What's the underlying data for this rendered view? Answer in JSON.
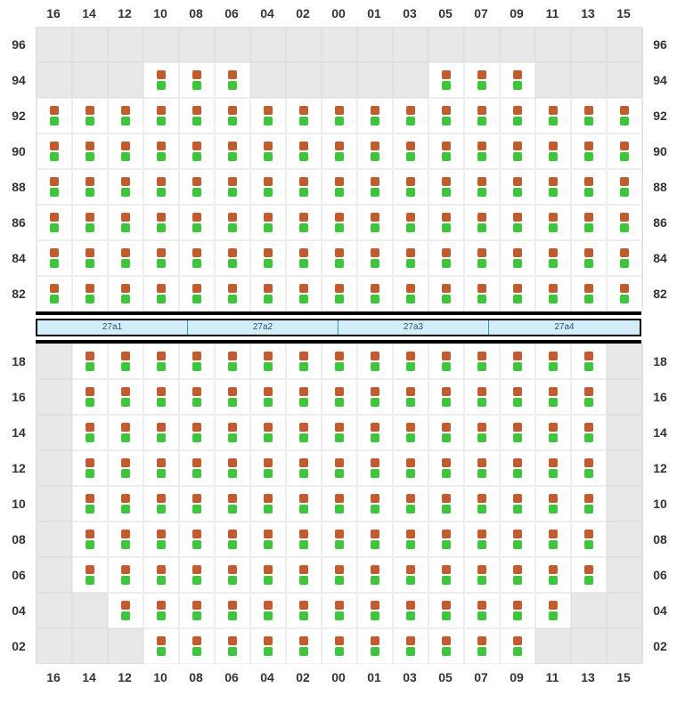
{
  "columns": [
    "16",
    "14",
    "12",
    "10",
    "08",
    "06",
    "04",
    "02",
    "00",
    "01",
    "03",
    "05",
    "07",
    "09",
    "11",
    "13",
    "15"
  ],
  "seat_top_color": "#c25b2e",
  "seat_bot_color": "#3cc63c",
  "blank_bg_color": "#e8e8e8",
  "seat_bg_color": "#ffffff",
  "grid_border_color": "#eeeeee",
  "bar_bg_color": "#d4edfb",
  "bar_border_color": "#3399cc",
  "bar_segments": [
    "27a1",
    "27a2",
    "27a3",
    "27a4"
  ],
  "top_block": {
    "rows": [
      {
        "label": "96",
        "start": null,
        "end": null,
        "extra": []
      },
      {
        "label": "94",
        "cells": [
          "10",
          "08",
          "06",
          "05",
          "07",
          "09"
        ]
      },
      {
        "label": "92",
        "start": "16",
        "end": "15"
      },
      {
        "label": "90",
        "start": "16",
        "end": "15"
      },
      {
        "label": "88",
        "start": "16",
        "end": "15"
      },
      {
        "label": "86",
        "start": "16",
        "end": "15"
      },
      {
        "label": "84",
        "start": "16",
        "end": "15"
      },
      {
        "label": "82",
        "start": "16",
        "end": "15"
      }
    ]
  },
  "bottom_block": {
    "rows": [
      {
        "label": "18",
        "start": "14",
        "end": "13"
      },
      {
        "label": "16",
        "start": "14",
        "end": "13"
      },
      {
        "label": "14",
        "start": "14",
        "end": "13"
      },
      {
        "label": "12",
        "start": "14",
        "end": "13"
      },
      {
        "label": "10",
        "start": "14",
        "end": "13"
      },
      {
        "label": "08",
        "start": "14",
        "end": "13"
      },
      {
        "label": "06",
        "start": "14",
        "end": "13"
      },
      {
        "label": "04",
        "start": "12",
        "end": "11"
      },
      {
        "label": "02",
        "start": "10",
        "end": "09"
      }
    ]
  }
}
